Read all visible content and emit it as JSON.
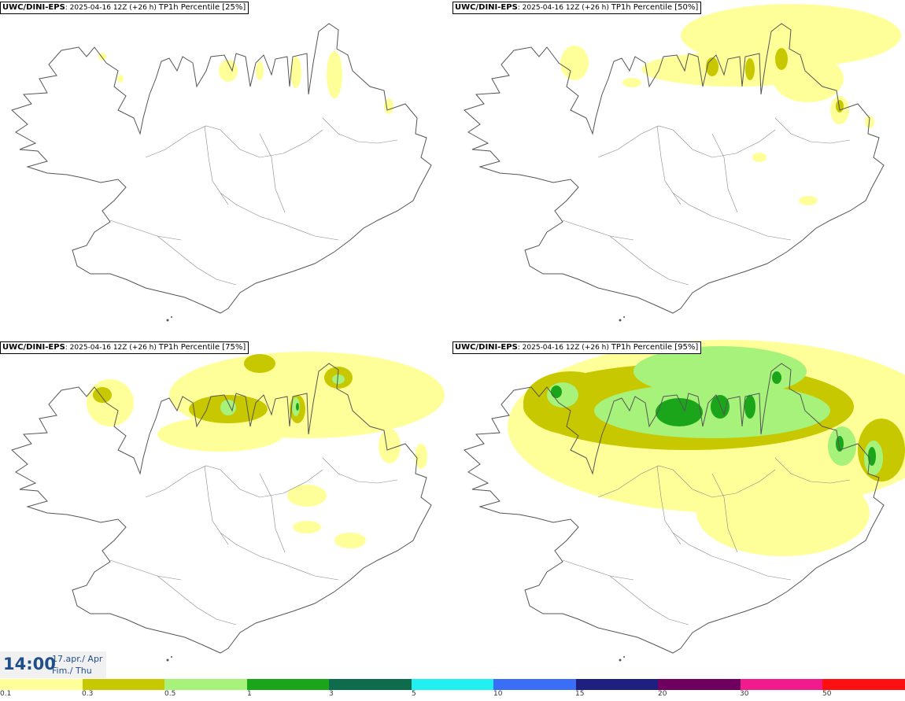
{
  "panels": [
    {
      "model": "UWC/DINI-EPS",
      "run": ": 2025-04-16 12Z (+26 h) ",
      "field": "TP1h Percentile [25%]"
    },
    {
      "model": "UWC/DINI-EPS",
      "run": ": 2025-04-16 12Z (+26 h) ",
      "field": "TP1h Percentile [50%]"
    },
    {
      "model": "UWC/DINI-EPS",
      "run": ": 2025-04-16 12Z (+26 h) ",
      "field": "TP1h Percentile [75%]"
    },
    {
      "model": "UWC/DINI-EPS",
      "run": ": 2025-04-16 12Z (+26 h) ",
      "field": "TP1h Percentile [95%]"
    }
  ],
  "timebox": {
    "time": "14:00",
    "date_line": "17.apr./ Apr",
    "day_line": "Fim./ Thu"
  },
  "legend": {
    "colors": [
      "#ffff99",
      "#c8c800",
      "#a6f27a",
      "#1aa51a",
      "#0e6b4b",
      "#22f0f0",
      "#3a6ef5",
      "#1f1f80",
      "#700060",
      "#f01c8c",
      "#ff1010"
    ],
    "labels": [
      "0.1",
      "0.3",
      "0.5",
      "1",
      "3",
      "5",
      "10",
      "15",
      "20",
      "30",
      "50"
    ]
  },
  "map_colors": {
    "light_yellow": "#ffff99",
    "olive": "#c8c800",
    "light_green": "#a6f27a",
    "green": "#1aa51a"
  }
}
